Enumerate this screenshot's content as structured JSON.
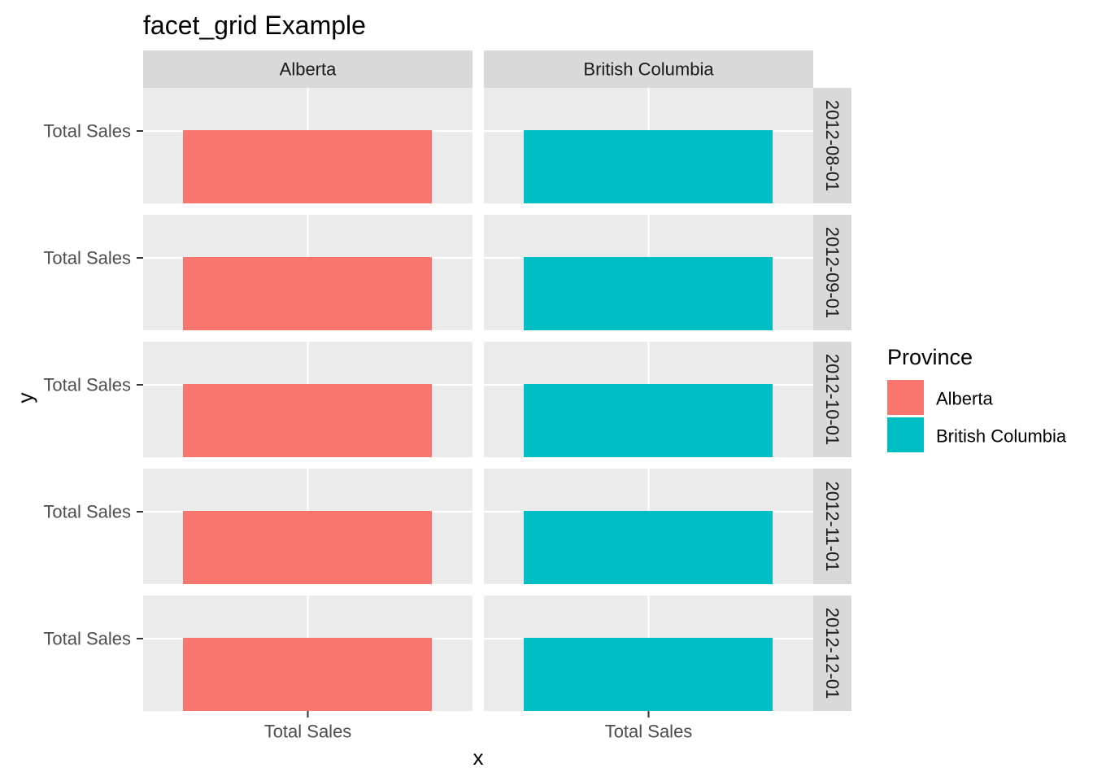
{
  "chart_data": {
    "type": "bar",
    "orientation": "horizontal",
    "title": "facet_grid Example",
    "xlabel": "x",
    "ylabel": "y",
    "facet_cols": [
      "Alberta",
      "British Columbia"
    ],
    "facet_rows": [
      "2012-08-01",
      "2012-09-01",
      "2012-10-01",
      "2012-11-01",
      "2012-12-01"
    ],
    "x_tick_label": "Total Sales",
    "y_tick_label": "Total Sales",
    "legend": {
      "title": "Province",
      "entries": [
        {
          "label": "Alberta",
          "color": "#F8766D"
        },
        {
          "label": "British Columbia",
          "color": "#00BFC4"
        }
      ],
      "position": "right"
    },
    "grid": true,
    "panel_background": "#EBEBEB",
    "strip_background": "#D9D9D9"
  }
}
